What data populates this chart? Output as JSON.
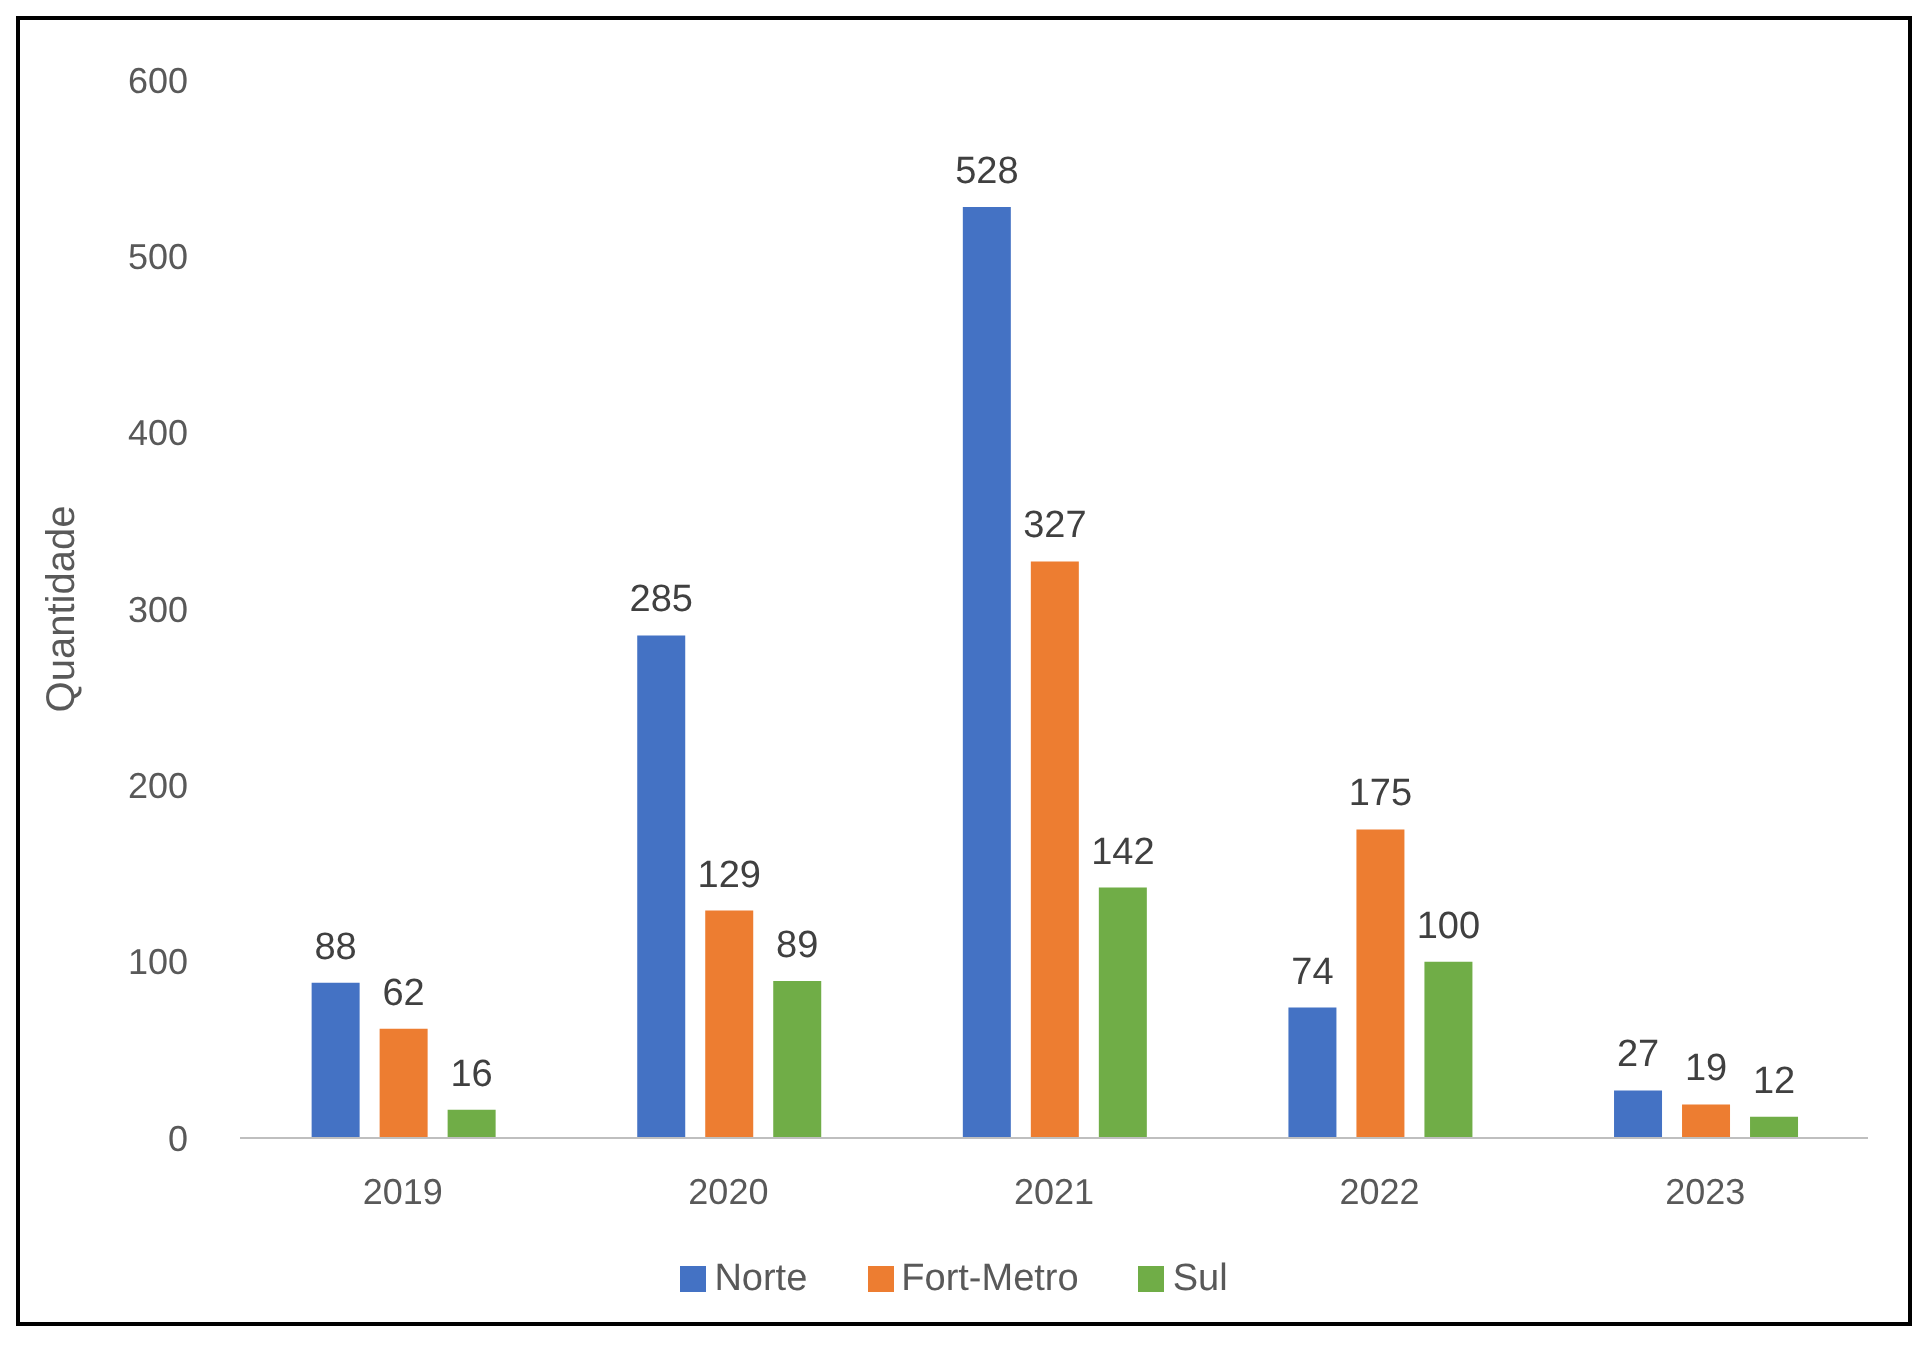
{
  "chart_data": {
    "type": "bar",
    "ylabel": "Quantidade",
    "categories": [
      "2019",
      "2020",
      "2021",
      "2022",
      "2023"
    ],
    "series": [
      {
        "name": "Norte",
        "color": "#4472c4",
        "values": [
          88,
          285,
          528,
          74,
          27
        ]
      },
      {
        "name": "Fort-Metro",
        "color": "#ed7d31",
        "values": [
          62,
          129,
          327,
          175,
          19
        ]
      },
      {
        "name": "Sul",
        "color": "#70ad47",
        "values": [
          16,
          89,
          142,
          100,
          12
        ]
      }
    ],
    "ylim": [
      0,
      600
    ],
    "yticks": [
      0,
      100,
      200,
      300,
      400,
      500,
      600
    ],
    "grid": false,
    "legend": "bottom",
    "data_labels": true
  }
}
